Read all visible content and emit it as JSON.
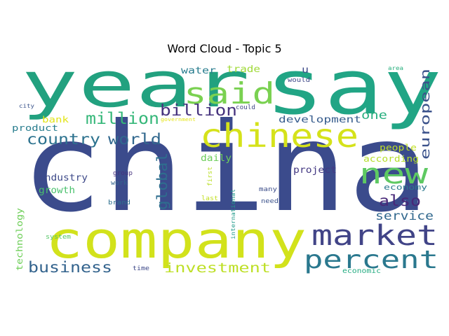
{
  "chart_data": {
    "type": "wordcloud",
    "title": "Word Cloud - Topic 5",
    "words": [
      {
        "text": "china",
        "color": "#3b4b8c"
      },
      {
        "text": "say",
        "color": "#21a585"
      },
      {
        "text": "year",
        "color": "#22a17f"
      },
      {
        "text": "company",
        "color": "#d2e21b"
      },
      {
        "text": "chinese",
        "color": "#d5e21a"
      },
      {
        "text": "market",
        "color": "#414487"
      },
      {
        "text": "percent",
        "color": "#2a788e"
      },
      {
        "text": "said",
        "color": "#7ad151"
      },
      {
        "text": "new",
        "color": "#5ec962"
      },
      {
        "text": "billion",
        "color": "#46337e"
      },
      {
        "text": "million",
        "color": "#35b779"
      },
      {
        "text": "country",
        "color": "#2c728e"
      },
      {
        "text": "world",
        "color": "#31688e"
      },
      {
        "text": "global",
        "color": "#2e6e8e"
      },
      {
        "text": "european",
        "color": "#3b528b"
      },
      {
        "text": "business",
        "color": "#33638d"
      },
      {
        "text": "investment",
        "color": "#bddf26"
      },
      {
        "text": "also",
        "color": "#482878"
      },
      {
        "text": "service",
        "color": "#31688e"
      },
      {
        "text": "one",
        "color": "#29af7f"
      },
      {
        "text": "development",
        "color": "#365c8d"
      },
      {
        "text": "trade",
        "color": "#a0da39"
      },
      {
        "text": "water",
        "color": "#287c8e"
      },
      {
        "text": "bank",
        "color": "#e2e418"
      },
      {
        "text": "product",
        "color": "#287d8e"
      },
      {
        "text": "industry",
        "color": "#3e4a89"
      },
      {
        "text": "growth",
        "color": "#4ac16d"
      },
      {
        "text": "daily",
        "color": "#6ccd5a"
      },
      {
        "text": "project",
        "color": "#443983"
      },
      {
        "text": "people",
        "color": "#c0df25"
      },
      {
        "text": "according",
        "color": "#b5de2b"
      },
      {
        "text": "economy",
        "color": "#2a788e"
      },
      {
        "text": "technology",
        "color": "#6ece58"
      },
      {
        "text": "economic",
        "color": "#25ac82"
      },
      {
        "text": "government",
        "color": "#e5e419"
      },
      {
        "text": "group",
        "color": "#46327e"
      },
      {
        "text": "work",
        "color": "#33638d"
      },
      {
        "text": "brand",
        "color": "#2d708e"
      },
      {
        "text": "time",
        "color": "#3e4989"
      },
      {
        "text": "system",
        "color": "#56c667"
      },
      {
        "text": "city",
        "color": "#3a538b"
      },
      {
        "text": "could",
        "color": "#404688"
      },
      {
        "text": "would",
        "color": "#3f4889"
      },
      {
        "text": "area",
        "color": "#2ab07f"
      },
      {
        "text": "u",
        "color": "#3e4a89"
      },
      {
        "text": "first",
        "color": "#bade28"
      },
      {
        "text": "last",
        "color": "#c2df23"
      },
      {
        "text": "international",
        "color": "#1f9a8a"
      },
      {
        "text": "many",
        "color": "#3d4e8a"
      },
      {
        "text": "need",
        "color": "#3b528b"
      }
    ]
  }
}
